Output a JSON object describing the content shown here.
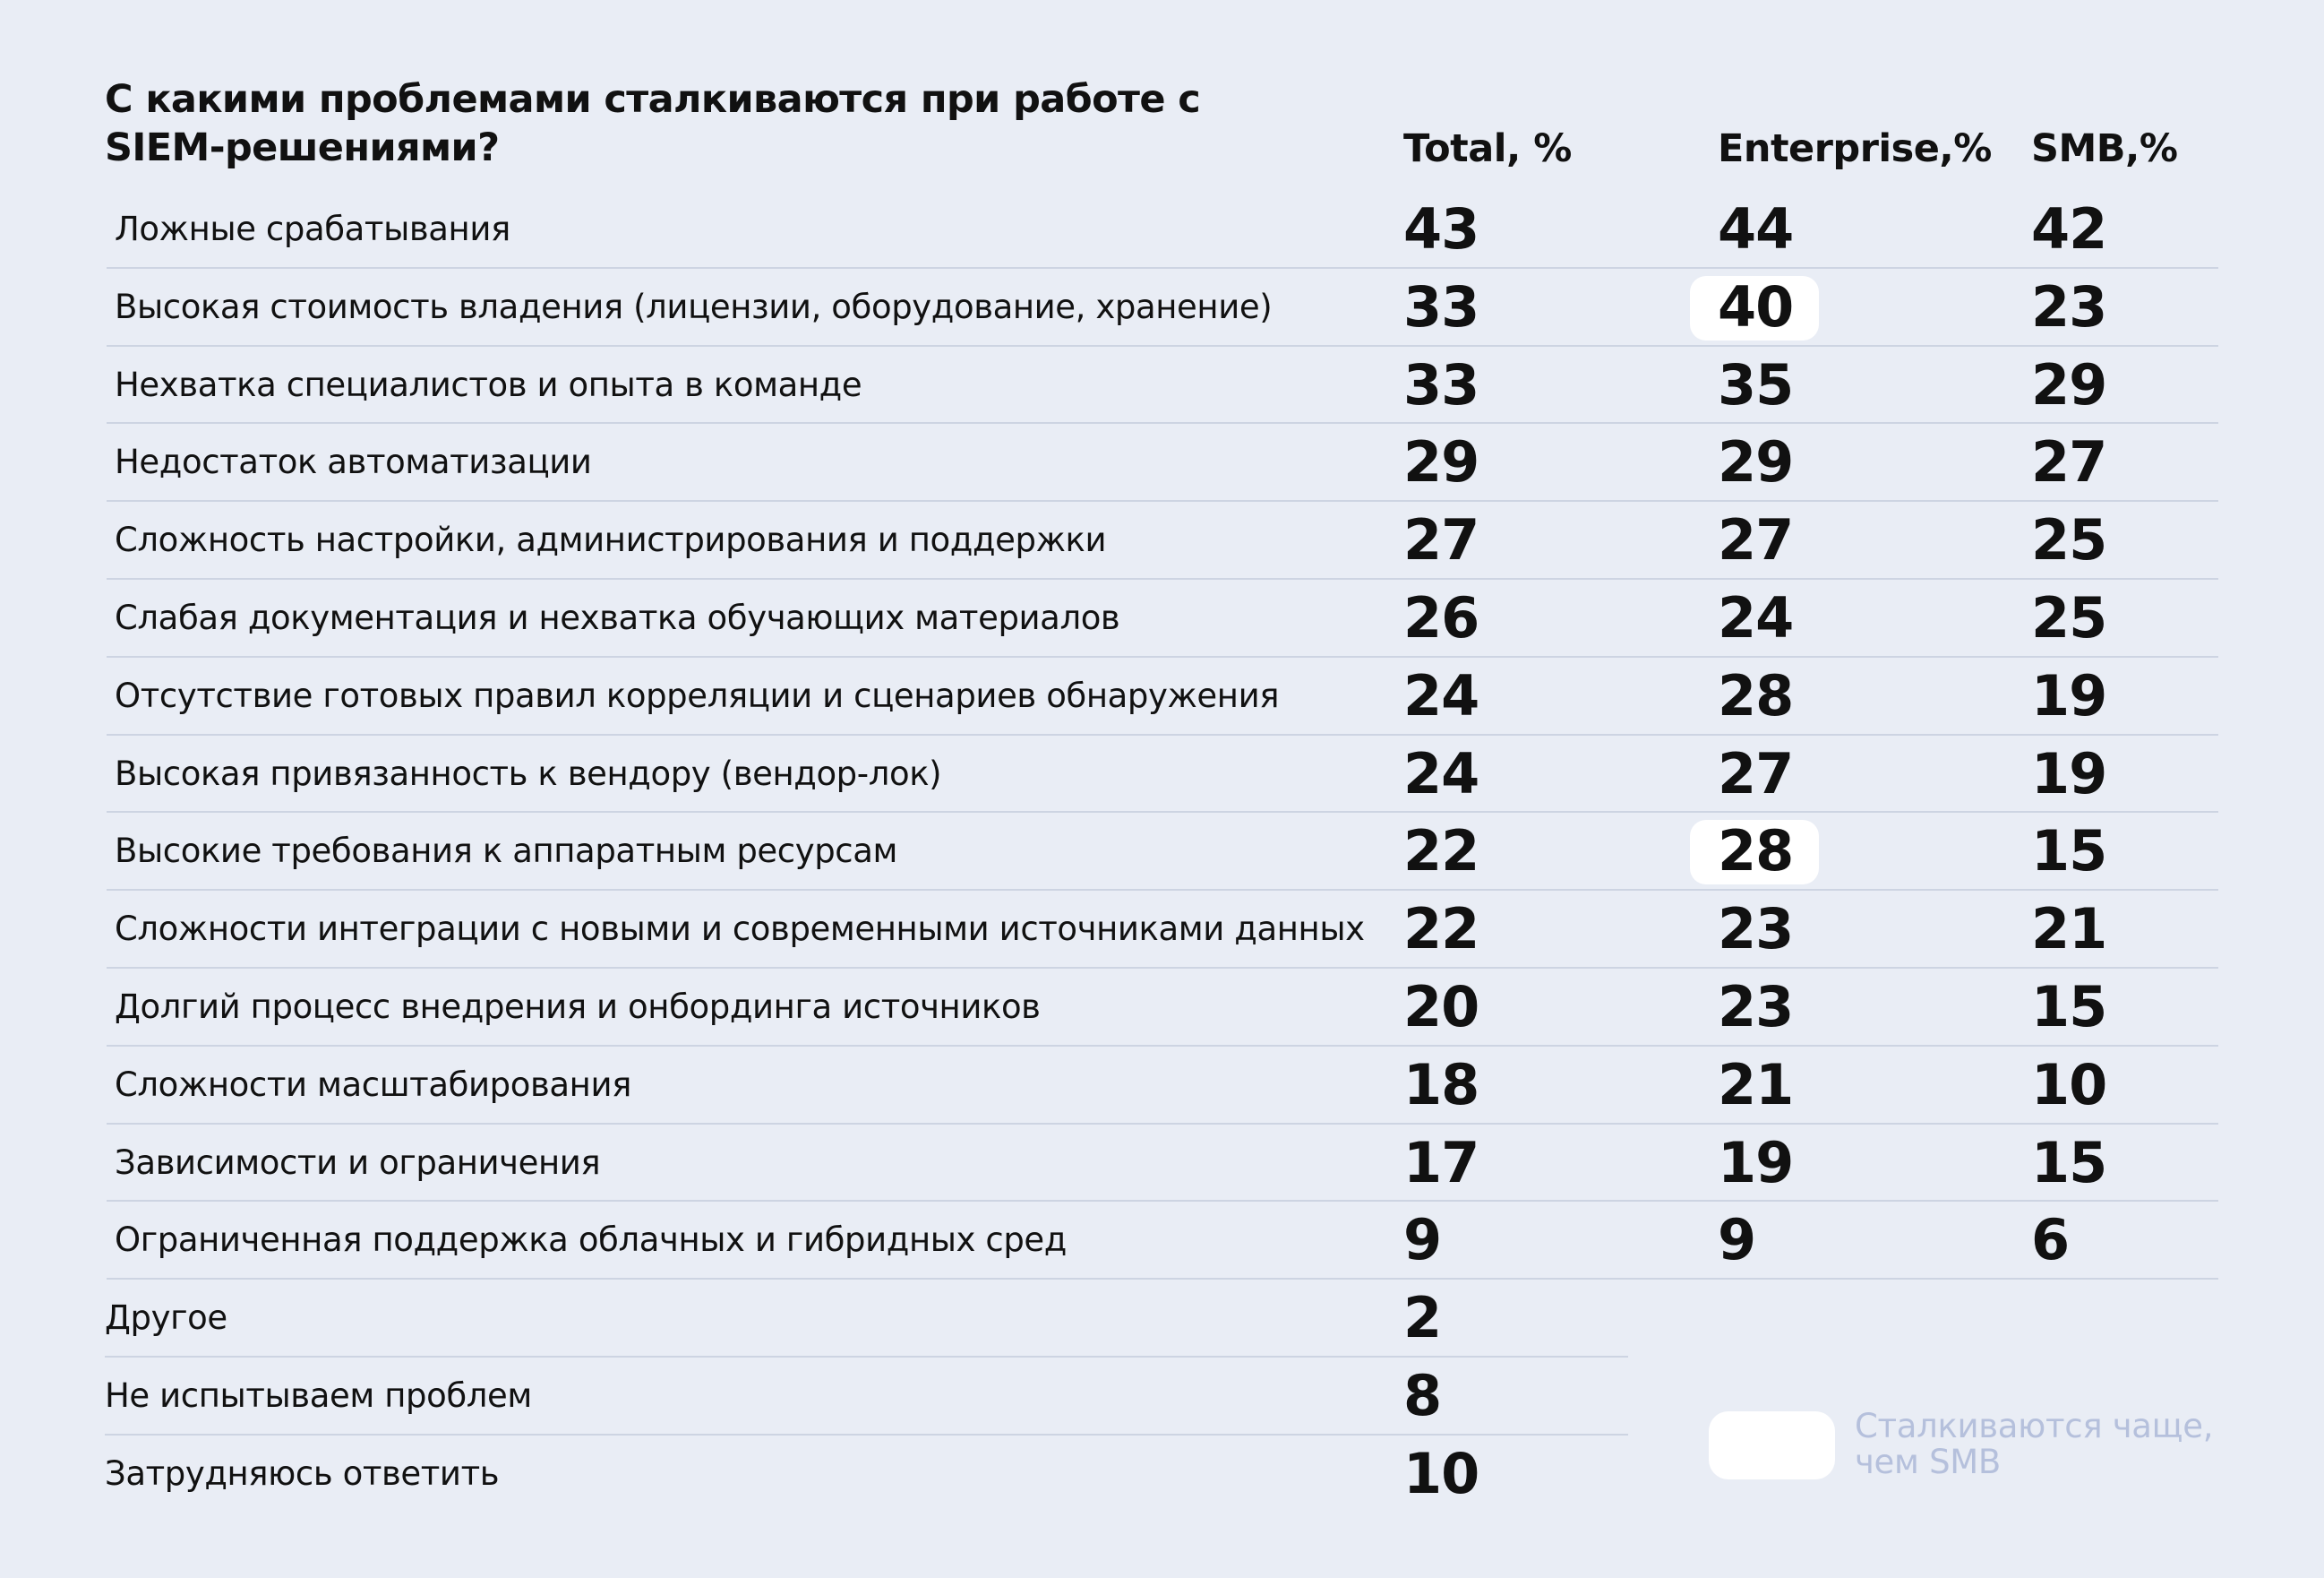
{
  "title": "С какими проблемами сталкиваются при работе с SIEM-решениями?",
  "headers": {
    "total": "Total, %",
    "enterprise": "Enterprise,%",
    "smb": "SMB,%"
  },
  "rows": [
    {
      "label": "Ложные срабатывания",
      "total": "43",
      "enterprise": "44",
      "smb": "42",
      "enterprise_highlight": false
    },
    {
      "label": "Высокая стоимость владения (лицензии, оборудование, хранение)",
      "total": "33",
      "enterprise": "40",
      "smb": "23",
      "enterprise_highlight": true
    },
    {
      "label": "Нехватка специалистов и опыта в команде",
      "total": "33",
      "enterprise": "35",
      "smb": "29",
      "enterprise_highlight": false
    },
    {
      "label": "Недостаток автоматизации",
      "total": "29",
      "enterprise": "29",
      "smb": "27",
      "enterprise_highlight": false
    },
    {
      "label": "Сложность настройки, администрирования и поддержки",
      "total": "27",
      "enterprise": "27",
      "smb": "25",
      "enterprise_highlight": false
    },
    {
      "label": "Слабая документация и нехватка обучающих материалов",
      "total": "26",
      "enterprise": "24",
      "smb": "25",
      "enterprise_highlight": false
    },
    {
      "label": "Отсутствие готовых правил корреляции и сценариев обнаружения",
      "total": "24",
      "enterprise": "28",
      "smb": "19",
      "enterprise_highlight": false
    },
    {
      "label": "Высокая привязанность к вендору (вендор-лок)",
      "total": "24",
      "enterprise": "27",
      "smb": "19",
      "enterprise_highlight": false
    },
    {
      "label": "Высокие требования к аппаратным ресурсам",
      "total": "22",
      "enterprise": "28",
      "smb": "15",
      "enterprise_highlight": true
    },
    {
      "label": "Сложности интеграции с новыми и современными источниками данных",
      "total": "22",
      "enterprise": "23",
      "smb": "21",
      "enterprise_highlight": false
    },
    {
      "label": "Долгий процесс внедрения и онбординга источников",
      "total": "20",
      "enterprise": "23",
      "smb": "15",
      "enterprise_highlight": false
    },
    {
      "label": "Сложности масштабирования",
      "total": "18",
      "enterprise": "21",
      "smb": "10",
      "enterprise_highlight": false
    },
    {
      "label": "Зависимости и ограничения",
      "total": "17",
      "enterprise": "19",
      "smb": "15",
      "enterprise_highlight": false
    },
    {
      "label": "Ограниченная поддержка облачных и гибридных сред",
      "total": "9",
      "enterprise": "9",
      "smb": "6",
      "enterprise_highlight": false
    }
  ],
  "other_rows": [
    {
      "label": "Другое",
      "total": "2"
    },
    {
      "label": "Не испытываем проблем",
      "total": "8"
    },
    {
      "label": "Затрудняюсь ответить",
      "total": "10"
    }
  ],
  "legend": {
    "text": "Сталкиваются чаще, чем SMB",
    "swatch_color": "#ffffff"
  },
  "colors": {
    "background": "#e9edf5",
    "separator": "#cdd4e2",
    "highlight": "#ffffff",
    "legend_text": "#b5c0dc"
  }
}
